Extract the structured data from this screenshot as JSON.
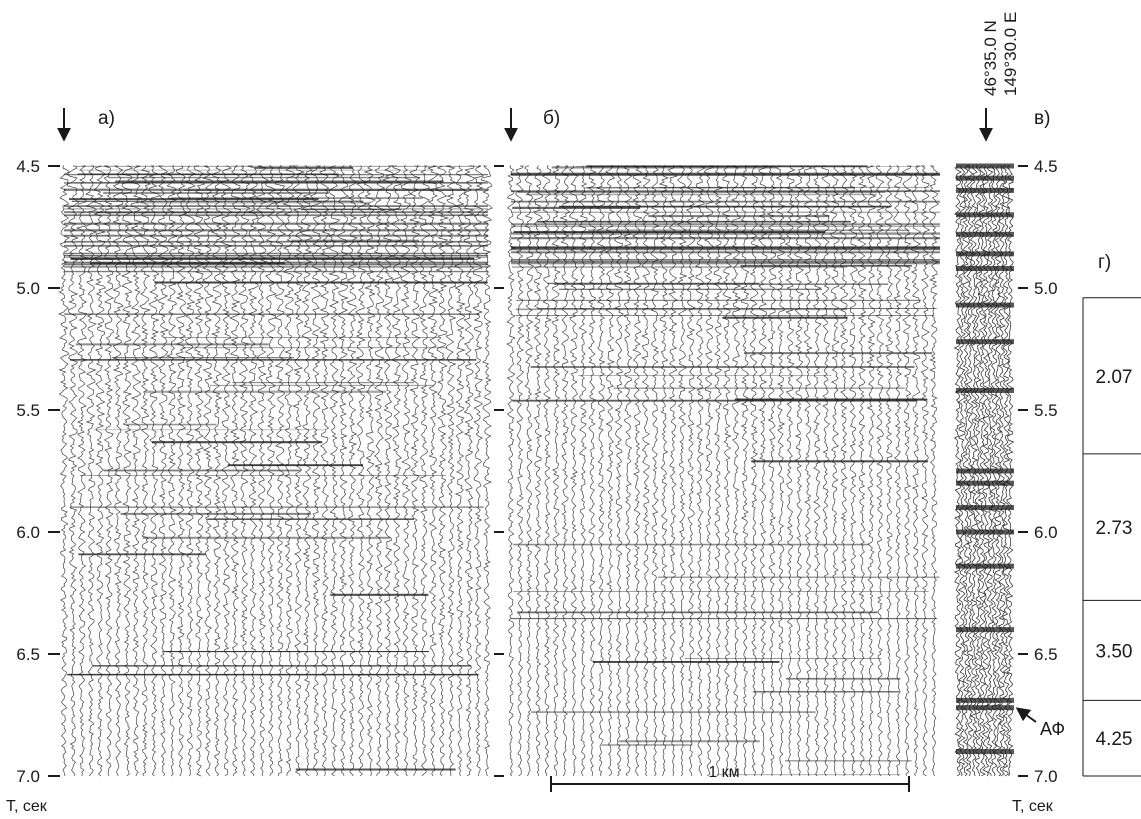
{
  "panels": {
    "a": {
      "label": "а)"
    },
    "b": {
      "label": "б)"
    },
    "c": {
      "label": "в)",
      "coords": [
        "46°35.0 N",
        "149°30.0 E"
      ]
    },
    "d": {
      "label": "г)"
    }
  },
  "time_axis": {
    "ticks": [
      "4.5",
      "5.0",
      "5.5",
      "6.0",
      "6.5",
      "7.0"
    ],
    "unit_label": "T, сек"
  },
  "scale_bar": {
    "label": "1 км"
  },
  "velocity_layers": [
    {
      "value": "2.07",
      "top_s": 5.04,
      "bottom_s": 5.68
    },
    {
      "value": "2.73",
      "top_s": 5.68,
      "bottom_s": 6.28
    },
    {
      "value": "3.50",
      "top_s": 6.28,
      "bottom_s": 6.69
    },
    {
      "value": "4.25",
      "top_s": 6.69,
      "bottom_s": 7.0
    }
  ],
  "annotation": {
    "label": "АФ",
    "time_s": 6.69
  },
  "colors": {
    "ink": "#1a1a1a",
    "trace": "#222222"
  }
}
